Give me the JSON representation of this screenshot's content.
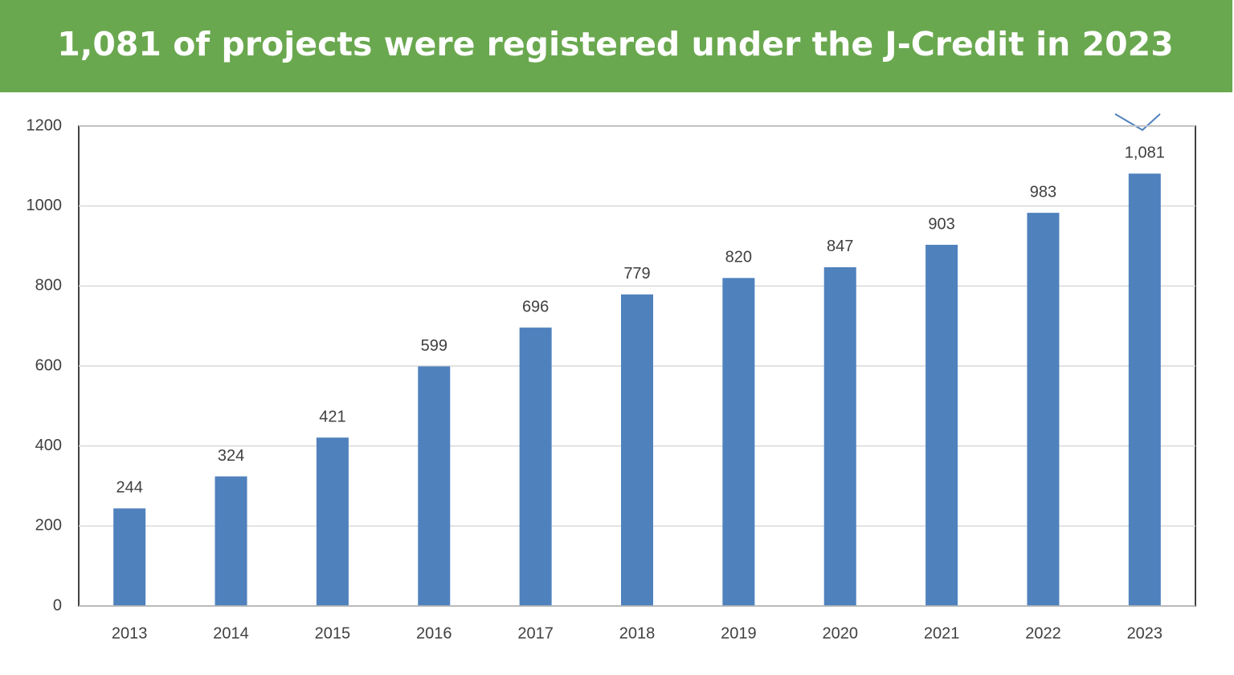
{
  "chart_data": {
    "type": "bar",
    "title": "1,081 of projects were registered under the J-Credit in 2023",
    "categories": [
      "2013",
      "2014",
      "2015",
      "2016",
      "2017",
      "2018",
      "2019",
      "2020",
      "2021",
      "2022",
      "2023"
    ],
    "values": [
      244,
      324,
      421,
      599,
      696,
      779,
      820,
      847,
      903,
      983,
      1081
    ],
    "value_labels": [
      "244",
      "324",
      "421",
      "599",
      "696",
      "779",
      "820",
      "847",
      "903",
      "983",
      "1,081"
    ],
    "color": "#4f81bd",
    "ylim": [
      0,
      1200
    ],
    "yticks": [
      0,
      200,
      400,
      600,
      800,
      1000,
      1200
    ],
    "grid": true
  }
}
